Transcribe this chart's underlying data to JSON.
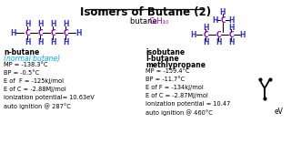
{
  "title": "Isomers of Butane (2)",
  "formula_label": "butane ",
  "formula_colored": "C₄H₁₀",
  "bg_color": "#ffffff",
  "title_color": "#000000",
  "formula_color": "#9900cc",
  "H_color": "#3333cc",
  "C_color": "#9900cc",
  "line_color": "#000000",
  "cyan_color": "#00aaff",
  "left_name1": "n-butane",
  "left_name2": "(normal butane)",
  "left_props": [
    "MP = -138.3°C",
    "BP = -0.5°C",
    "E of  F = -125kJ/mol",
    "E of C = -2.88MJ/mol",
    "ionization potential= 10.63eV",
    "auto ignition @ 287°C"
  ],
  "right_name1": "isobutane",
  "right_name2": "I-butane",
  "right_name3": "methlypropane",
  "right_props": [
    "MP = -159.4°C",
    "BP = -11.7°C",
    "E of F = -134kJ/mol",
    "E of C = -2.87MJ/mol",
    "ionization potential = 10.47",
    "auto ignition @ 460°C"
  ],
  "ev_label": "eV"
}
